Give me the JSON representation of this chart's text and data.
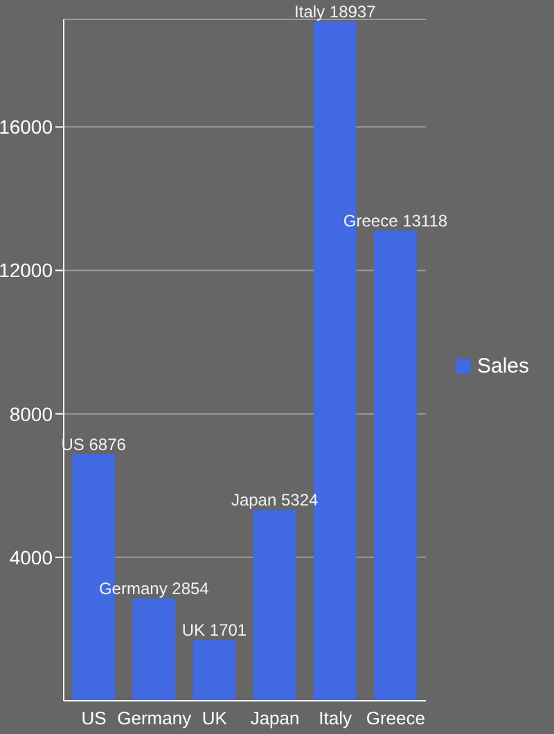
{
  "chart_data": {
    "type": "bar",
    "categories": [
      "US",
      "Germany",
      "UK",
      "Japan",
      "Italy",
      "Greece"
    ],
    "series": [
      {
        "name": "Sales",
        "color": "#4169e1",
        "values": [
          6876,
          2854,
          1701,
          5324,
          18937,
          13118
        ],
        "value_labels": [
          "US 6876",
          "Germany 2854",
          "UK 1701",
          "Japan 5324",
          "Italy 18937",
          "Greece 13118"
        ]
      }
    ],
    "ylim": [
      0,
      19000
    ],
    "yticks": [
      4000,
      8000,
      12000,
      16000
    ],
    "grid": "y",
    "legend": "right"
  }
}
